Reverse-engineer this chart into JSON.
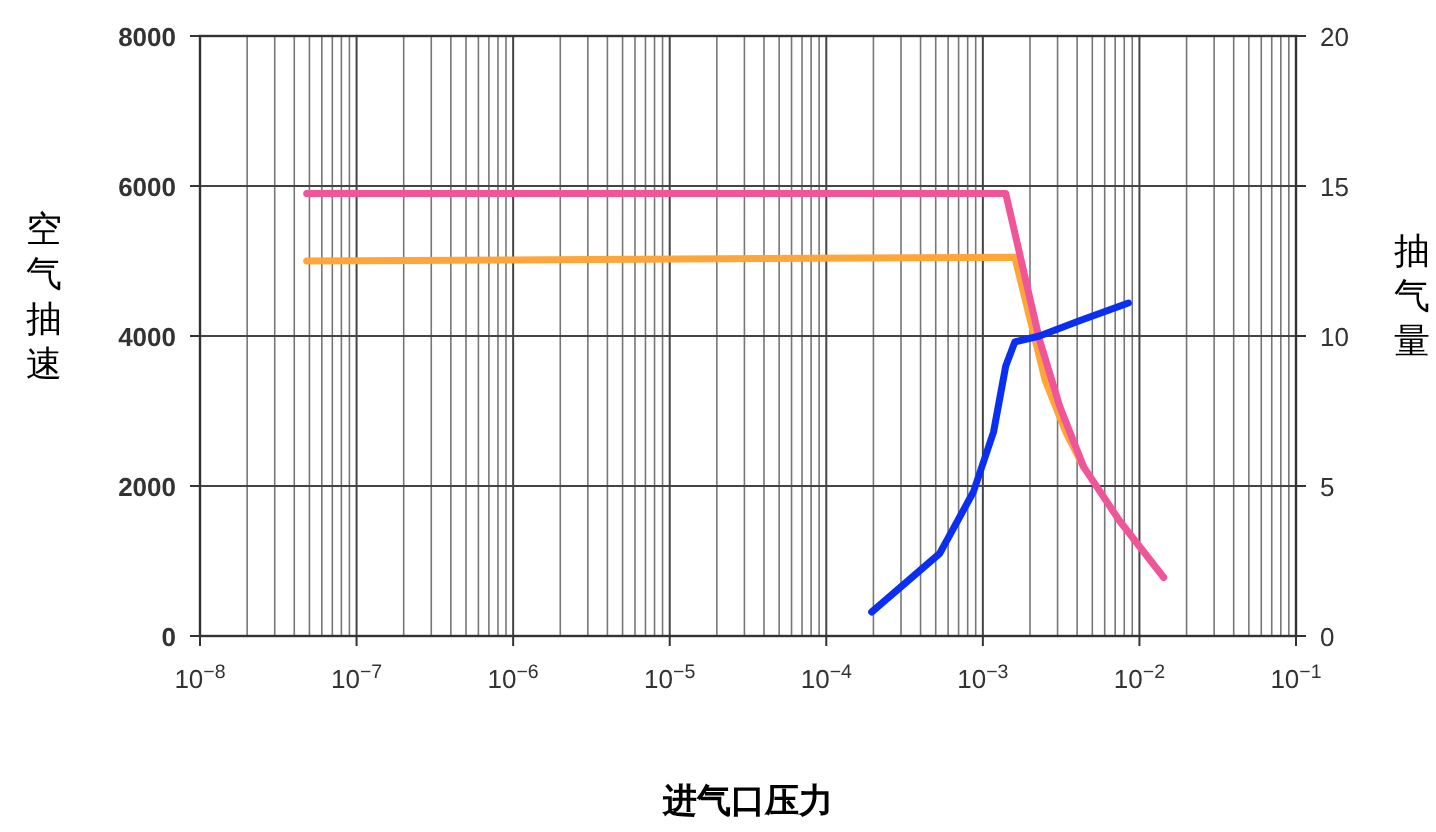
{
  "chart_data": {
    "type": "line",
    "xlabel": "进气口压力",
    "ylabel": "空气抽速",
    "y2label": "抽气量",
    "log": "x",
    "grid": true,
    "line_style": "solid",
    "xlim": [
      1e-08,
      0.1
    ],
    "xticks": [
      {
        "value": 1e-08,
        "label": "10$^{−8}$"
      },
      {
        "value": 1e-07,
        "label": "10$^{−7}$"
      },
      {
        "value": 1e-06,
        "label": "10$^{−6}$"
      },
      {
        "value": 1e-05,
        "label": "10$^{−5}$"
      },
      {
        "value": 0.0001,
        "label": "10$^{−4}$"
      },
      {
        "value": 0.001,
        "label": "10$^{−3}$"
      },
      {
        "value": 0.01,
        "label": "10$^{−2}$"
      },
      {
        "value": 0.1,
        "label": "10$^{−1}$"
      }
    ],
    "ylim": [
      0,
      8000
    ],
    "yticks": [
      0,
      2000,
      4000,
      6000,
      8000
    ],
    "y2lim": [
      0,
      20
    ],
    "y2ticks": [
      0,
      5,
      10,
      15,
      20
    ],
    "series": [
      {
        "color": "#ffa53a",
        "x": [
          4.8e-08,
          0.0016,
          0.0025,
          0.0034,
          0.0044
        ],
        "values": [
          5000,
          5050,
          3410,
          2710,
          2255
        ]
      },
      {
        "color": "#f0559a",
        "x": [
          4.8e-08,
          0.0014,
          0.0023,
          0.0031,
          0.0044,
          0.0075,
          0.0143
        ],
        "values": [
          5900,
          5900,
          3950,
          3060,
          2255,
          1530,
          780
        ]
      },
      {
        "color": "#0a2ff0",
        "axis": "y2",
        "x": [
          0.000195,
          0.00053,
          0.00087,
          0.00117,
          0.0014,
          0.0016,
          0.0023,
          0.0041,
          0.0085
        ],
        "values": [
          0.8,
          2.75,
          4.8,
          6.8,
          9.0,
          9.8,
          10.0,
          10.5,
          11.1
        ]
      }
    ]
  }
}
